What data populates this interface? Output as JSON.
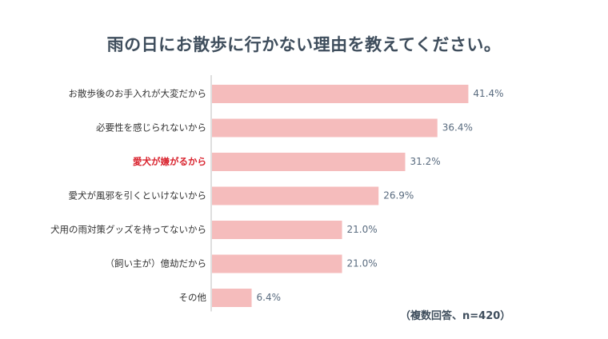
{
  "chart_data": {
    "type": "bar",
    "orientation": "horizontal",
    "title": "雨の日にお散歩に行かない理由を教えてください。",
    "note": "（複数回答、n=420）",
    "categories": [
      "お散歩後のお手入れが大変だから",
      "必要性を感じられないから",
      "愛犬が嫌がるから",
      "愛犬が風邪を引くといけないから",
      "犬用の雨対策グッズを持ってないから",
      "（飼い主が）億劫だから",
      "その他"
    ],
    "values": [
      41.4,
      36.4,
      31.2,
      26.9,
      21.0,
      21.0,
      6.4
    ],
    "value_labels": [
      "41.4%",
      "36.4%",
      "31.2%",
      "26.9%",
      "21.0%",
      "21.0%",
      "6.4%"
    ],
    "highlighted_category_index": 2,
    "xlim": [
      0,
      50
    ],
    "grid": false,
    "colors": {
      "bar": "#f5bcbc",
      "label": "#333333",
      "highlight_label": "#d9232e",
      "value_label": "#596b7f",
      "axis": "#bfbfbf",
      "title": "#3e4d5c"
    }
  }
}
